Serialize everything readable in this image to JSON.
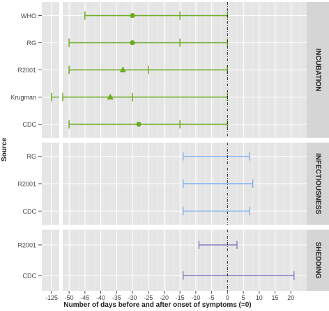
{
  "chart_data": {
    "type": "interval",
    "xlabel": "Number of days before and after onset of symptoms (=0)",
    "ylabel": "Source",
    "x_ticks": [
      -125,
      -50,
      -45,
      -40,
      -35,
      -30,
      -25,
      -20,
      -15,
      -10,
      -5,
      0,
      5,
      10,
      15,
      20
    ],
    "x_ticks_labels": [
      "-125",
      "-50",
      "-45",
      "-40",
      "-35",
      "-30",
      "-25",
      "-20",
      "-15",
      "-10",
      "-5",
      "0",
      "5",
      "10",
      "15",
      "20"
    ],
    "xlim": [
      -127.5,
      25
    ],
    "axis_break": [
      -123,
      -52
    ],
    "reference_line_x": 0,
    "colors": {
      "incubation": "#6aaa1e",
      "infectiousness": "#7cb3f0",
      "shedding": "#8c7cc6",
      "panel_bg": "#e5e5e5",
      "strip_bg": "#d5d5d5"
    },
    "panels": [
      {
        "label": "INCUBATION",
        "color_key": "incubation",
        "rows": [
          {
            "source": "WHO",
            "lower": -45,
            "inner_tick": -15,
            "upper": 0,
            "point": -30,
            "marker": "circle"
          },
          {
            "source": "RG",
            "lower": -50,
            "inner_tick": -15,
            "upper": 0,
            "point": -30,
            "marker": "circle"
          },
          {
            "source": "R2001",
            "lower": -50,
            "inner_tick": -25,
            "upper": 0,
            "point": -33,
            "marker": "triangle"
          },
          {
            "source": "Krugman",
            "lower": -125,
            "inner_tick": -30,
            "upper": 0,
            "point": -37,
            "marker": "triangle"
          },
          {
            "source": "CDC",
            "lower": -50,
            "inner_tick": -15,
            "upper": 0,
            "point": -28,
            "marker": "circle"
          }
        ]
      },
      {
        "label": "INFECTIOUSNESS",
        "color_key": "infectiousness",
        "rows": [
          {
            "source": "RG",
            "lower": -14,
            "upper": 7
          },
          {
            "source": "R2001",
            "lower": -14,
            "upper": 8
          },
          {
            "source": "CDC",
            "lower": -14,
            "upper": 7
          }
        ]
      },
      {
        "label": "SHEDDING",
        "color_key": "shedding",
        "rows": [
          {
            "source": "R2001",
            "lower": -9,
            "upper": 3
          },
          {
            "source": "CDC",
            "lower": -14,
            "upper": 21
          }
        ]
      }
    ]
  }
}
